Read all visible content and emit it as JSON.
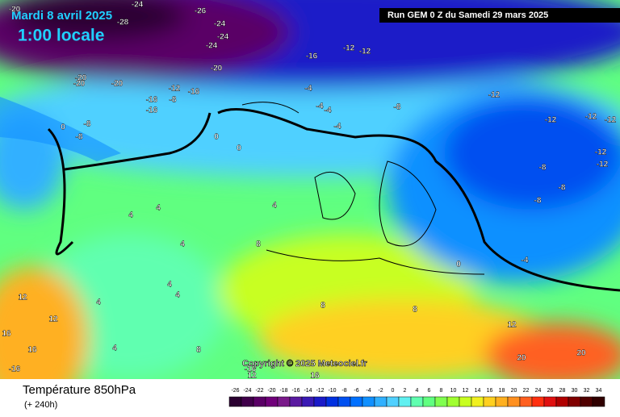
{
  "header": {
    "date": "Mardi 8 avril 2025",
    "time": "1:00 locale",
    "run": "Run GEM 0 Z du Samedi 29 mars 2025"
  },
  "footer": {
    "title": "Température 850hPa",
    "subtitle": "(+ 240h)",
    "copyright": "Copyright © 2025 Meteociel.fr"
  },
  "legend": {
    "ticks": [
      -26,
      -24,
      -22,
      -20,
      -18,
      -16,
      -14,
      -12,
      -10,
      -8,
      -6,
      -4,
      -2,
      0,
      2,
      4,
      6,
      8,
      10,
      12,
      14,
      16,
      18,
      20,
      22,
      24,
      26,
      28,
      30,
      32,
      34
    ],
    "colors": [
      "#2a0030",
      "#40004a",
      "#5a0066",
      "#70007a",
      "#7a1a8a",
      "#5a1aa0",
      "#3a1ab4",
      "#1a1ac8",
      "#0030e0",
      "#0050f0",
      "#0070ff",
      "#1090ff",
      "#30b0ff",
      "#50d0ff",
      "#60f0f0",
      "#60ffb0",
      "#60ff80",
      "#80ff50",
      "#a0ff30",
      "#c8ff20",
      "#f0f020",
      "#ffd020",
      "#ffb020",
      "#ff9020",
      "#ff6020",
      "#ff3010",
      "#e01010",
      "#b00000",
      "#800000",
      "#500000",
      "#300000"
    ]
  },
  "map_labels": [
    "-20",
    "-24",
    "-26",
    "-28",
    "-24",
    "-24",
    "-24",
    "-20",
    "-20",
    "-20",
    "-20",
    "-16",
    "-12",
    "-12",
    "-12",
    "-16",
    "-16",
    "-12",
    "-16",
    "-8",
    "-8",
    "0",
    "-8",
    "0",
    "0",
    "-4",
    "-4",
    "-4",
    "-4",
    "-8",
    "-12",
    "-12",
    "-12",
    "-12",
    "-12",
    "-8",
    "-8",
    "-8",
    "-4",
    "0",
    "4",
    "4",
    "4",
    "8",
    "4",
    "4",
    "4",
    "4",
    "8",
    "4",
    "12",
    "12",
    "16",
    "16",
    "-16",
    "12",
    "8",
    "8",
    "16",
    "20",
    "20",
    "12",
    "-16"
  ]
}
